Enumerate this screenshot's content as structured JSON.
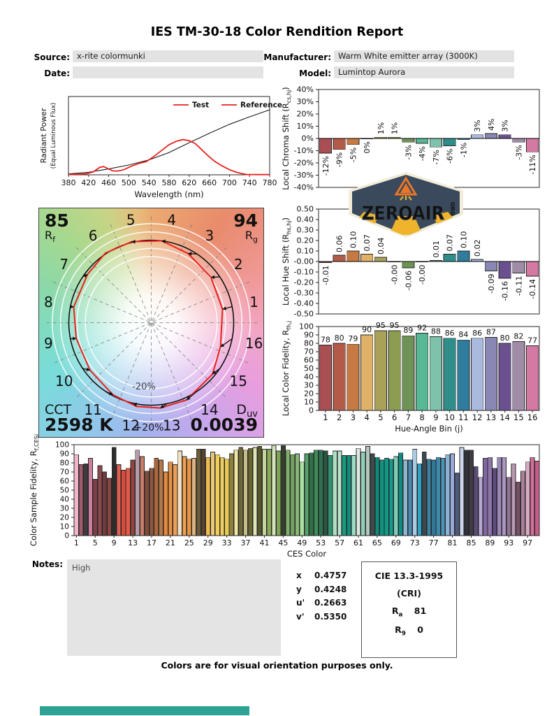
{
  "report": {
    "title": "IES TM-30-18 Color Rendition Report",
    "source_label": "Source:",
    "source_value": "x-rite colormunki",
    "date_label": "Date:",
    "date_value": "",
    "manufacturer_label": "Manufacturer:",
    "manufacturer_value": "Warm White emitter array (3000K)",
    "model_label": "Model:",
    "model_value": "Lumintop Aurora",
    "footer": "Colors are for visual orientation purposes only."
  },
  "notes": {
    "label": "Notes:",
    "text": "High"
  },
  "chromaticity": {
    "rows": [
      {
        "label": "x",
        "value": "0.4757"
      },
      {
        "label": "y",
        "value": "0.4248"
      },
      {
        "label": "u'",
        "value": "0.2663"
      },
      {
        "label": "v'",
        "value": "0.5350"
      }
    ]
  },
  "cri_box": {
    "title": "CIE 13.3-1995",
    "subtitle": "(CRI)",
    "ra_label": "R",
    "ra_sub": "a",
    "ra_value": "81",
    "r9_label": "R",
    "r9_sub": "9",
    "r9_value": "0"
  },
  "logo": {
    "wordmark": "ZEROAIR",
    "org": "ORG",
    "navy": "#3a4a5c",
    "orange": "#e8762a",
    "yellow": "#f0b42c",
    "cream": "#f2ecd9"
  },
  "colors": {
    "test_red": "#e8211c",
    "reference_black": "#1a1a1a",
    "field_bg": "#e3e3e3",
    "bottom_bar_teal": "#2fa296",
    "bar_outline": "#262626"
  },
  "hue_bin_colors": [
    "#a94f54",
    "#b35b48",
    "#c67943",
    "#e0b268",
    "#aaa158",
    "#8c9c51",
    "#6f9356",
    "#58b795",
    "#7fc2ab",
    "#2f8e8a",
    "#2f7c9c",
    "#a9bade",
    "#8a87b5",
    "#6b5090",
    "#a18ca8",
    "#d379a2"
  ],
  "chart_data": [
    {
      "id": "spd",
      "type": "line",
      "xlabel": "Wavelength (nm)",
      "ylabel_lines": [
        "Radiant Power",
        "(Equal Luminous Flux)"
      ],
      "xlim": [
        380,
        780
      ],
      "xticks": [
        380,
        420,
        460,
        500,
        540,
        580,
        620,
        660,
        700,
        740,
        780
      ],
      "legend": [
        {
          "label": "Test",
          "line": "#e8211c",
          "text": "#e8211c"
        },
        {
          "label": "Reference",
          "line": "#e8211c",
          "text": "#1a1a1a"
        }
      ],
      "series": [
        {
          "name": "Reference",
          "color": "#1a1a1a",
          "x": [
            380,
            420,
            460,
            500,
            540,
            580,
            620,
            660,
            700,
            740,
            780
          ],
          "y": [
            0.012,
            0.032,
            0.075,
            0.125,
            0.19,
            0.285,
            0.41,
            0.53,
            0.645,
            0.74,
            0.83
          ]
        },
        {
          "name": "Test",
          "color": "#e8211c",
          "x": [
            380,
            400,
            415,
            430,
            442,
            450,
            458,
            468,
            478,
            490,
            505,
            520,
            535,
            550,
            565,
            580,
            595,
            608,
            620,
            632,
            645,
            658,
            670,
            685,
            700,
            715,
            728,
            735,
            760,
            780
          ],
          "y": [
            0.005,
            0.008,
            0.012,
            0.04,
            0.095,
            0.105,
            0.08,
            0.05,
            0.048,
            0.065,
            0.11,
            0.145,
            0.17,
            0.235,
            0.31,
            0.385,
            0.43,
            0.45,
            0.435,
            0.4,
            0.32,
            0.24,
            0.175,
            0.115,
            0.065,
            0.03,
            0.012,
            0.004,
            0.003,
            0.003
          ]
        }
      ]
    },
    {
      "id": "local-chroma-shift",
      "type": "bar",
      "ylabel": {
        "pre": "Local Chroma Shift (R",
        "sub": "cs,hj",
        "post": ")"
      },
      "ylim": [
        -40,
        40
      ],
      "ystep": 10,
      "yfmt": "percent",
      "categories": [
        1,
        2,
        3,
        4,
        5,
        6,
        7,
        8,
        9,
        10,
        11,
        12,
        13,
        14,
        15,
        16
      ],
      "values": [
        -12,
        -9,
        -5,
        0,
        1,
        1,
        -3,
        -4,
        -7,
        -6,
        -1,
        3,
        4,
        3,
        -3,
        -11
      ],
      "value_labels": [
        "-12%",
        "-9%",
        "-5%",
        "0%",
        "1%",
        "1%",
        "-3%",
        "-4%",
        "-7%",
        "-6%",
        "-1%",
        "3%",
        "4%",
        "3%",
        "-3%",
        "-11%"
      ]
    },
    {
      "id": "local-hue-shift",
      "type": "bar",
      "ylabel": {
        "pre": "Local Hue Shift (R",
        "sub": "hs,hj",
        "post": ")"
      },
      "ylim": [
        -0.5,
        0.5
      ],
      "ystep": 0.1,
      "yfmt": "dec2",
      "categories": [
        1,
        2,
        3,
        4,
        5,
        6,
        7,
        8,
        9,
        10,
        11,
        12,
        13,
        14,
        15,
        16
      ],
      "values": [
        -0.01,
        0.06,
        0.1,
        0.07,
        0.04,
        -0.004,
        -0.06,
        -0.004,
        0.01,
        0.07,
        0.1,
        0.02,
        -0.09,
        -0.16,
        -0.11,
        -0.14
      ],
      "value_labels": [
        "-0.01",
        "0.06",
        "0.10",
        "0.07",
        "0.04",
        "-0.00",
        "-0.06",
        "-0.00",
        "0.01",
        "0.07",
        "0.10",
        "0.02",
        "-0.09",
        "-0.16",
        "-0.11",
        "-0.14"
      ]
    },
    {
      "id": "local-color-fidelity",
      "type": "bar",
      "ylabel": {
        "pre": "Local Color Fidelity, R",
        "sub": "fh,j",
        "post": ""
      },
      "xlabel": "Hue-Angle Bin (j)",
      "ylim": [
        0,
        100
      ],
      "ystep": 10,
      "yfmt": "int",
      "categories": [
        1,
        2,
        3,
        4,
        5,
        6,
        7,
        8,
        9,
        10,
        11,
        12,
        13,
        14,
        15,
        16
      ],
      "values": [
        78,
        80,
        79,
        90,
        95,
        95,
        89,
        92,
        88,
        86,
        84,
        86,
        87,
        80,
        82,
        77
      ]
    },
    {
      "id": "color-vector-graphic",
      "type": "polar",
      "rf_value": "85",
      "rf_label": "R",
      "rf_sub": "f",
      "rg_value": "94",
      "rg_label": "R",
      "rg_sub": "g",
      "cct_label": "CCT",
      "cct_value": "2598 K",
      "duv_label": "D",
      "duv_sub": "uv",
      "duv_value": "0.0039",
      "ring_label_inner": "-20%",
      "ring_label_outer": "+20%",
      "bin_numbers": [
        1,
        2,
        3,
        4,
        5,
        6,
        7,
        8,
        9,
        10,
        11,
        12,
        13,
        14,
        15,
        16
      ],
      "chroma_shift_pct": [
        -12,
        -9,
        -5,
        0,
        1,
        1,
        -3,
        -4,
        -7,
        -6,
        -1,
        3,
        4,
        3,
        -3,
        -11
      ],
      "hue_shift_rad": [
        -0.01,
        0.06,
        0.1,
        0.07,
        0.04,
        -0.004,
        -0.06,
        -0.004,
        0.01,
        0.07,
        0.1,
        0.02,
        -0.09,
        -0.16,
        -0.11,
        -0.14
      ]
    },
    {
      "id": "color-sample-fidelity",
      "type": "bar",
      "ylabel": {
        "pre": "Color Sample Fidelity, R",
        "sub": "f,CESi",
        "post": ""
      },
      "xlabel": "CES Color",
      "ylim": [
        0,
        100
      ],
      "ystep": 10,
      "yfmt": "int",
      "xtick_every4_start": 1,
      "values": [
        89,
        78,
        79,
        85,
        62,
        77,
        70,
        63,
        97,
        78,
        72,
        74,
        83,
        94,
        87,
        71,
        74,
        85,
        83,
        70,
        81,
        78,
        93,
        87,
        84,
        85,
        95,
        95,
        86,
        92,
        89,
        86,
        84,
        90,
        94,
        97,
        94,
        96,
        97,
        98,
        95,
        95,
        99,
        93,
        99,
        94,
        89,
        90,
        81,
        90,
        91,
        94,
        94,
        93,
        88,
        93,
        93,
        88,
        88,
        88,
        96,
        92,
        98,
        90,
        86,
        83,
        85,
        84,
        87,
        91,
        83,
        83,
        95,
        79,
        92,
        84,
        83,
        86,
        85,
        89,
        90,
        69,
        97,
        94,
        94,
        76,
        64,
        85,
        86,
        74,
        86,
        86,
        64,
        79,
        59,
        71,
        81,
        86,
        82
      ],
      "colors": [
        "#f0b5ca",
        "#a05a6e",
        "#3f3a3c",
        "#cc7e9e",
        "#7e3e46",
        "#8e4a4e",
        "#6e3c3e",
        "#8a4444",
        "#2e2c2c",
        "#e06052",
        "#d84c3e",
        "#e05a48",
        "#934440",
        "#b69ca8",
        "#c87c6a",
        "#7e4c3a",
        "#8e573e",
        "#aa663e",
        "#b4784a",
        "#e08a40",
        "#e89348",
        "#ea9e56",
        "#f2e0c4",
        "#f0a050",
        "#e89642",
        "#dab286",
        "#6a5c38",
        "#564330",
        "#f2ba50",
        "#e8ca7a",
        "#f2ce57",
        "#eecd64",
        "#e8ca50",
        "#8c803e",
        "#f2e4a2",
        "#6c6638",
        "#c4bd8a",
        "#686532",
        "#dfe4b4",
        "#56562c",
        "#c4d49c",
        "#8caa57",
        "#d4e4ba",
        "#7ea257",
        "#35402c",
        "#81b06c",
        "#719f61",
        "#87b677",
        "#ace0a0",
        "#57a26c",
        "#2f7046",
        "#3e8c57",
        "#2f7052",
        "#2a5740",
        "#309070",
        "#acdfc4",
        "#bae4ce",
        "#1b9880",
        "#10907c",
        "#9cdec4",
        "#e0e9e4",
        "#90ceb6",
        "#b4c6be",
        "#3e4c48",
        "#11887a",
        "#149280",
        "#119886",
        "#179a8c",
        "#80cab6",
        "#0e8c82",
        "#8cb6ce",
        "#4c8cb2",
        "#aacae2",
        "#2aa2ca",
        "#3e464e",
        "#3e80a0",
        "#307896",
        "#3e88ac",
        "#4e92b6",
        "#8ab2d6",
        "#98aada",
        "#4e5a7a",
        "#ced6ee",
        "#303238",
        "#403c46",
        "#5a4c76",
        "#baa8d4",
        "#8068a2",
        "#8c76ac",
        "#604c80",
        "#9c88b6",
        "#aa96c2",
        "#907292",
        "#ba9ab2",
        "#765066",
        "#aa8098",
        "#d6aac2",
        "#d2709c",
        "#c65c88"
      ]
    }
  ]
}
